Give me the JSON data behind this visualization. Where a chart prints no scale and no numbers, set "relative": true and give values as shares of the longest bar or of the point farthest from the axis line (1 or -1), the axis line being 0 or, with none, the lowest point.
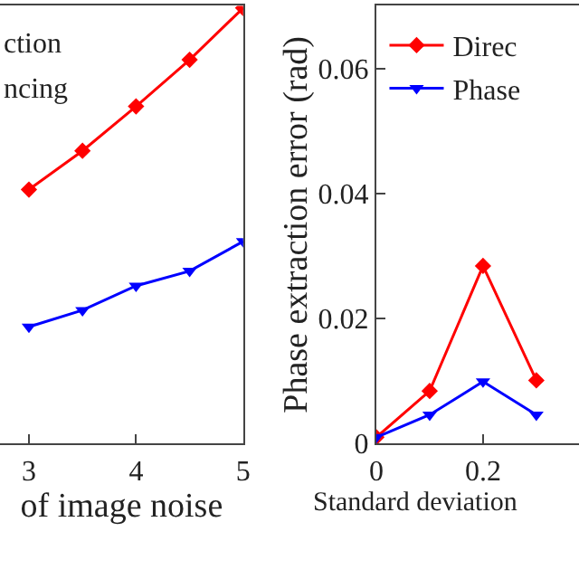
{
  "chart_data": [
    {
      "type": "line",
      "relative": true,
      "xlabel": "of image noise",
      "x": [
        3,
        3.5,
        4,
        4.5,
        5
      ],
      "xlim": [
        2.73,
        5
      ],
      "xticks": [
        3,
        4,
        5
      ],
      "legend": false,
      "tick_labels": "x",
      "annotations": [
        "ction",
        "ncing"
      ],
      "series": [
        {
          "color": "#ff0000",
          "marker": "diamond",
          "values": [
            0.583,
            0.672,
            0.774,
            0.881,
            1
          ]
        },
        {
          "color": "#0000ff",
          "marker": "triangle",
          "values": [
            0.268,
            0.306,
            0.362,
            0.396,
            0.464
          ]
        }
      ]
    },
    {
      "type": "line",
      "xlabel": "Standard deviation",
      "ylabel": "Phase extraction error (rad)",
      "x": [
        0,
        0.1,
        0.2,
        0.3
      ],
      "xlim": [
        0,
        0.38
      ],
      "xticks": [
        0,
        0.2
      ],
      "ylim": [
        0,
        0.07
      ],
      "yticks": [
        0,
        0.02,
        0.04,
        0.06
      ],
      "legend": "top left",
      "series": [
        {
          "name": "Direc",
          "color": "#ff0000",
          "marker": "diamond",
          "values": [
            0.001,
            0.0084,
            0.0284,
            0.0101
          ]
        },
        {
          "name": "Phase",
          "color": "#0000ff",
          "marker": "triangle",
          "values": [
            0.001,
            0.0046,
            0.0099,
            0.0046
          ]
        }
      ]
    }
  ]
}
